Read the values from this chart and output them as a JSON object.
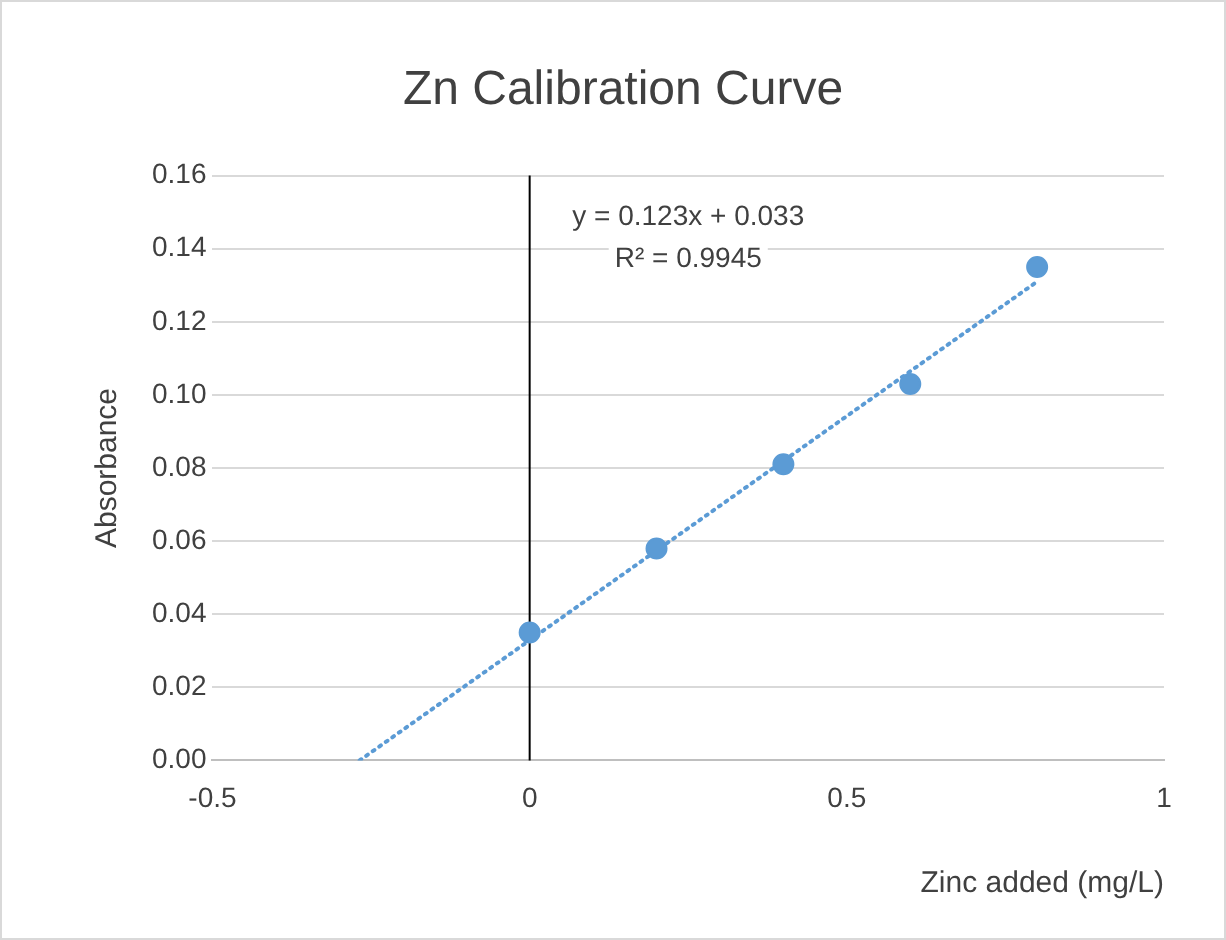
{
  "chart_data": {
    "type": "scatter",
    "title": "Zn Calibration Curve",
    "xlabel": "Zinc added (mg/L)",
    "ylabel": "Absorbance",
    "x": [
      0,
      0.2,
      0.4,
      0.6,
      0.8
    ],
    "series": [
      {
        "color": "#5b9bd5",
        "marker": "circle",
        "values": [
          0.035,
          0.058,
          0.081,
          0.103,
          0.135
        ]
      },
      {
        "type": "line",
        "color": "#5b9bd5",
        "line_style": "dotted",
        "x": [
          -0.268,
          0.8
        ],
        "values": [
          0,
          0.131
        ]
      }
    ],
    "xlim": [
      -0.5,
      1
    ],
    "xticks": [
      -0.5,
      0,
      0.5,
      1
    ],
    "ylim": [
      0,
      0.16
    ],
    "yticks": [
      {
        "value": 0,
        "label": "0.00"
      },
      {
        "value": 0.02,
        "label": "0.02"
      },
      {
        "value": 0.04,
        "label": "0.04"
      },
      {
        "value": 0.06,
        "label": "0.06"
      },
      {
        "value": 0.08,
        "label": "0.08"
      },
      {
        "value": 0.1,
        "label": "0.10"
      },
      {
        "value": 0.12,
        "label": "0.12"
      },
      {
        "value": 0.14,
        "label": "0.14"
      },
      {
        "value": 0.16,
        "label": "0.16"
      }
    ],
    "ref_lines": [
      {
        "axis": "x",
        "value": 0,
        "color": "#000000"
      }
    ],
    "annotations": [
      "y = 0.123x + 0.033",
      "R² = 0.9945"
    ],
    "grid": "y",
    "legend": false
  }
}
